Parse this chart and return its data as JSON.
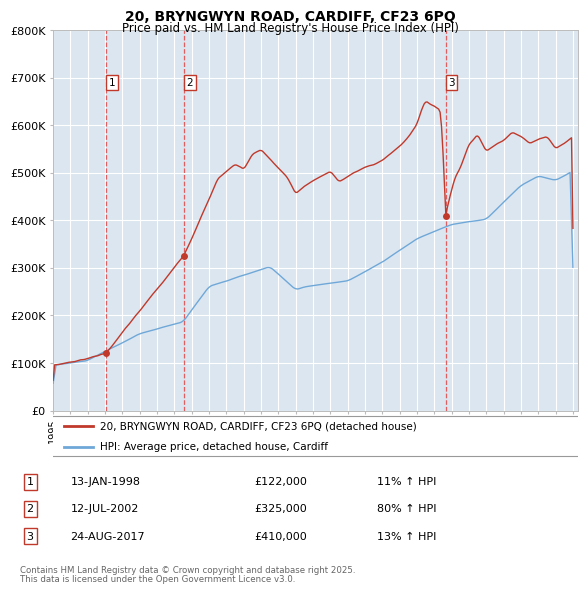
{
  "title": "20, BRYNGWYN ROAD, CARDIFF, CF23 6PQ",
  "subtitle": "Price paid vs. HM Land Registry's House Price Index (HPI)",
  "background_color": "#ffffff",
  "plot_bg_color": "#dce6f0",
  "grid_color": "#ffffff",
  "ylim": [
    0,
    800000
  ],
  "yticks": [
    0,
    100000,
    200000,
    300000,
    400000,
    500000,
    600000,
    700000,
    800000
  ],
  "ytick_labels": [
    "£0",
    "£100K",
    "£200K",
    "£300K",
    "£400K",
    "£500K",
    "£600K",
    "£700K",
    "£800K"
  ],
  "legend_line1": "20, BRYNGWYN ROAD, CARDIFF, CF23 6PQ (detached house)",
  "legend_line2": "HPI: Average price, detached house, Cardiff",
  "sale_points": [
    {
      "label": "1",
      "year": 1998.04,
      "price": 122000,
      "info": "13-JAN-1998",
      "price_str": "£122,000",
      "hpi_str": "11% ↑ HPI"
    },
    {
      "label": "2",
      "year": 2002.54,
      "price": 325000,
      "info": "12-JUL-2002",
      "price_str": "£325,000",
      "hpi_str": "80% ↑ HPI"
    },
    {
      "label": "3",
      "year": 2017.65,
      "price": 410000,
      "info": "24-AUG-2017",
      "price_str": "£410,000",
      "hpi_str": "13% ↑ HPI"
    }
  ],
  "footer_line1": "Contains HM Land Registry data © Crown copyright and database right 2025.",
  "footer_line2": "This data is licensed under the Open Government Licence v3.0.",
  "hpi_line_color": "#6fa8d8",
  "price_line_color": "#c0392b",
  "dashed_line_color": "#e05050"
}
